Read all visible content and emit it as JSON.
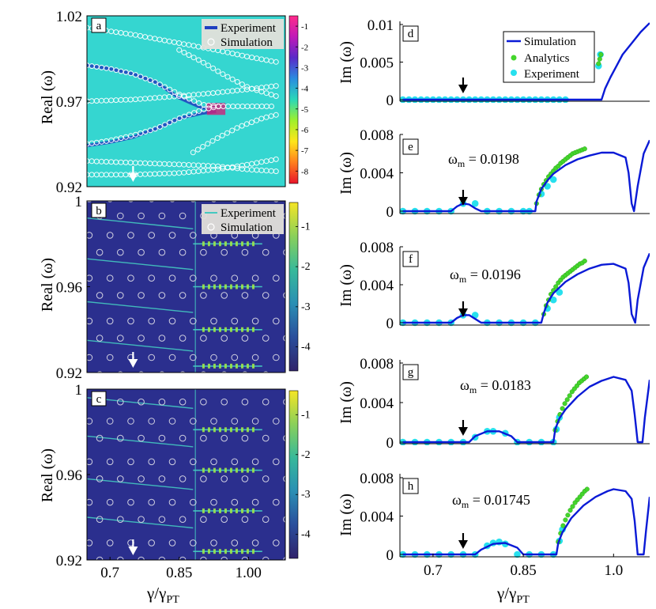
{
  "figure": {
    "left_xlabel": "γ/γ",
    "left_xlabel_sub": "PT",
    "right_xlabel": "γ/γ",
    "right_xlabel_sub": "PT",
    "left_ylabel": "Real (ω)",
    "right_ylabel": "Im (ω)",
    "omega_prefix": "ω",
    "omega_sub": "m",
    "colors": {
      "simulation_line": "#0a1ad6",
      "analytics_dot": "#44d62c",
      "experiment_dot": "#27e0ee",
      "arrow_black": "#000000",
      "arrow_white": "#ffffff",
      "panel_a_bg": "#35d6d0",
      "panel_bc_bg": "#2b2f8e",
      "trace_a": "#1f3fc0",
      "trace_bc": "#44c9c0"
    }
  },
  "chart_data": [
    {
      "id": "a",
      "type": "heatmap",
      "panel_label": "a",
      "xlim": [
        0.65,
        1.08
      ],
      "ylim": [
        0.92,
        1.02
      ],
      "yticks": [
        "1.02",
        "0.97",
        "0.92"
      ],
      "legend": {
        "entries": [
          "Experiment",
          "Simulation"
        ],
        "placement": "top-right"
      },
      "colorbar": {
        "ticks": [
          "-1",
          "-2",
          "-3",
          "-4",
          "-5",
          "-6",
          "-7",
          "-8"
        ],
        "range": [
          -8.6,
          -0.5
        ],
        "colors": [
          "#e8152a",
          "#ff7f1e",
          "#ffe619",
          "#9ff02a",
          "#2ad8b8",
          "#2a8de0",
          "#5a2ac8",
          "#c01ab8",
          "#ff2a8a"
        ]
      },
      "experiment_curves": [
        {
          "x": [
            0.65,
            0.7,
            0.75,
            0.8,
            0.85,
            0.9,
            0.93
          ],
          "y": [
            0.991,
            0.989,
            0.986,
            0.981,
            0.972,
            0.966,
            0.966
          ]
        },
        {
          "x": [
            0.65,
            0.7,
            0.75,
            0.8,
            0.85,
            0.9,
            0.93
          ],
          "y": [
            0.944,
            0.946,
            0.949,
            0.954,
            0.96,
            0.963,
            0.964
          ]
        }
      ],
      "simulation_curves": [
        {
          "x": [
            0.65,
            0.7,
            0.75,
            0.8,
            0.85,
            0.9,
            0.935
          ],
          "y": [
            0.991,
            0.989,
            0.986,
            0.981,
            0.974,
            0.968,
            0.967
          ]
        },
        {
          "x": [
            0.65,
            0.7,
            0.75,
            0.8,
            0.85,
            0.9,
            0.935
          ],
          "y": [
            0.945,
            0.947,
            0.95,
            0.954,
            0.96,
            0.965,
            0.967
          ]
        },
        {
          "x": [
            0.935,
            0.96,
            0.99,
            1.02,
            1.05
          ],
          "y": [
            0.967,
            0.967,
            0.967,
            0.967,
            0.967
          ]
        },
        {
          "x": [
            0.65,
            0.75,
            0.85,
            0.93,
            1.0,
            1.06
          ],
          "y": [
            1.013,
            1.009,
            1.004,
            1.0,
            0.996,
            0.993
          ]
        },
        {
          "x": [
            0.65,
            0.75,
            0.85,
            0.93,
            1.0,
            1.06
          ],
          "y": [
            0.97,
            0.971,
            0.973,
            0.975,
            0.977,
            0.979
          ]
        },
        {
          "x": [
            0.65,
            0.75,
            0.85,
            0.93,
            1.0,
            1.06
          ],
          "y": [
            0.935,
            0.934,
            0.933,
            0.932,
            0.93,
            0.929
          ]
        },
        {
          "x": [
            0.65,
            0.75,
            0.85,
            0.93,
            1.0,
            1.06
          ],
          "y": [
            0.927,
            0.927,
            0.928,
            0.93,
            0.933,
            0.936
          ]
        },
        {
          "x": [
            0.88,
            0.93,
            0.98,
            1.03,
            1.06
          ],
          "y": [
            0.94,
            0.948,
            0.955,
            0.96,
            0.962
          ]
        },
        {
          "x": [
            0.85,
            0.9,
            0.95,
            1.0,
            1.06
          ],
          "y": [
            1.0,
            0.993,
            0.985,
            0.978,
            0.973
          ]
        }
      ],
      "arrow": {
        "x": 0.75,
        "color": "white"
      }
    },
    {
      "id": "b",
      "type": "heatmap",
      "panel_label": "b",
      "xlim": [
        0.65,
        1.08
      ],
      "ylim": [
        0.92,
        1.0
      ],
      "yticks": [
        "1",
        "0.96",
        "0.92"
      ],
      "legend": {
        "entries": [
          "Experiment",
          "Simulation"
        ],
        "placement": "top-right"
      },
      "colorbar": {
        "ticks": [
          "-1",
          "-2",
          "-3",
          "-4"
        ],
        "range": [
          -4.6,
          -0.4
        ],
        "colors": [
          "#30236b",
          "#2a4e9c",
          "#2a8fb4",
          "#37b99a",
          "#8ad05a",
          "#f5e525"
        ]
      },
      "simulation_branches_y": [
        0.989,
        0.97,
        0.95,
        0.932
      ],
      "simulation_right_y": [
        0.98,
        0.96,
        0.94,
        0.923
      ],
      "extra_rows_y": [
        0.997,
        0.98,
        0.96,
        0.94,
        0.923
      ],
      "arrow": {
        "x": 0.75,
        "color": "white"
      }
    },
    {
      "id": "c",
      "type": "heatmap",
      "panel_label": "c",
      "xlim": [
        0.65,
        1.08
      ],
      "ylim": [
        0.92,
        1.0
      ],
      "yticks": [
        "1",
        "0.96",
        "0.92"
      ],
      "xticks": [
        "0.7",
        "0.85",
        "1.00"
      ],
      "colorbar": {
        "ticks": [
          "-1",
          "-2",
          "-3",
          "-4"
        ],
        "range": [
          -4.6,
          -0.4
        ],
        "colors": [
          "#30236b",
          "#2a4e9c",
          "#2a8fb4",
          "#37b99a",
          "#8ad05a",
          "#f5e525"
        ]
      },
      "simulation_branches_y": [
        0.993,
        0.975,
        0.955,
        0.937
      ],
      "simulation_right_y": [
        0.981,
        0.962,
        0.943,
        0.924
      ],
      "extra_rows_y": [
        0.998,
        0.981,
        0.962,
        0.943,
        0.924
      ],
      "arrow": {
        "x": 0.75,
        "color": "white"
      }
    },
    {
      "id": "d",
      "type": "line",
      "panel_label": "d",
      "xlim": [
        0.645,
        1.06
      ],
      "ylim": [
        0,
        0.01
      ],
      "yticks": [
        "0.01",
        "0.005",
        "0"
      ],
      "legend": {
        "entries": [
          "Simulation",
          "Analytics",
          "Experiment"
        ],
        "placement": "top-right"
      },
      "simulation": {
        "x": [
          0.65,
          0.98,
          0.986,
          0.995,
          1.005,
          1.015,
          1.03,
          1.045,
          1.06
        ],
        "y": [
          0,
          0,
          0.0015,
          0.003,
          0.0045,
          0.006,
          0.0075,
          0.009,
          0.0102
        ]
      },
      "analytics": {
        "x": [
          0.975,
          0.977,
          0.979
        ],
        "y": [
          0.0048,
          0.0054,
          0.006
        ]
      },
      "experiment": {
        "x": [
          0.65,
          0.66,
          0.67,
          0.68,
          0.69,
          0.7,
          0.71,
          0.72,
          0.73,
          0.74,
          0.75,
          0.76,
          0.77,
          0.78,
          0.79,
          0.8,
          0.81,
          0.82,
          0.83,
          0.84,
          0.85,
          0.86,
          0.87,
          0.88,
          0.89,
          0.9,
          0.91,
          0.92,
          0.975,
          0.978
        ],
        "y": [
          0,
          0,
          0,
          0,
          0,
          0,
          0,
          0,
          0,
          0,
          0,
          0,
          0,
          0,
          0,
          0,
          0,
          0,
          0,
          0,
          0,
          0,
          0,
          0,
          0,
          0,
          0,
          0,
          0.0045,
          0.006
        ]
      },
      "arrow": {
        "x": 0.75,
        "color": "black"
      }
    },
    {
      "id": "e",
      "type": "line",
      "panel_label": "e",
      "omega_m": "0.0198",
      "xlim": [
        0.645,
        1.06
      ],
      "ylim": [
        0,
        0.008
      ],
      "yticks": [
        "0.008",
        "0.004",
        "0"
      ],
      "simulation": {
        "x": [
          0.65,
          0.73,
          0.74,
          0.75,
          0.76,
          0.77,
          0.78,
          0.87,
          0.872,
          0.88,
          0.89,
          0.9,
          0.92,
          0.94,
          0.96,
          0.98,
          1.0,
          1.02,
          1.025,
          1.03,
          1.034,
          1.04,
          1.05,
          1.06
        ],
        "y": [
          0,
          0,
          0.0005,
          0.0008,
          0.0007,
          0.0003,
          0,
          0,
          0.001,
          0.0023,
          0.0032,
          0.0039,
          0.0048,
          0.0054,
          0.0058,
          0.0061,
          0.0061,
          0.0056,
          0.004,
          0.0008,
          0,
          0.0026,
          0.006,
          0.0074
        ]
      },
      "analytics": {
        "x": [
          0.872,
          0.876,
          0.88,
          0.884,
          0.888,
          0.892,
          0.896,
          0.9,
          0.904,
          0.908,
          0.912,
          0.916,
          0.92,
          0.924,
          0.928,
          0.932,
          0.936,
          0.94,
          0.944,
          0.948,
          0.952
        ],
        "y": [
          0.0008,
          0.0017,
          0.0023,
          0.0028,
          0.0032,
          0.0036,
          0.0039,
          0.0042,
          0.0045,
          0.0047,
          0.005,
          0.0052,
          0.0054,
          0.0056,
          0.0058,
          0.006,
          0.0061,
          0.0062,
          0.0063,
          0.0064,
          0.0065
        ]
      },
      "experiment": {
        "x": [
          0.65,
          0.67,
          0.69,
          0.71,
          0.73,
          0.75,
          0.77,
          0.79,
          0.81,
          0.83,
          0.85,
          0.86,
          0.88,
          0.89,
          0.9
        ],
        "y": [
          0,
          0,
          0,
          0,
          0,
          0.0008,
          0.0008,
          0,
          0,
          0,
          0,
          0,
          0.0018,
          0.0026,
          0.0033
        ]
      },
      "arrow": {
        "x": 0.75,
        "color": "black"
      }
    },
    {
      "id": "f",
      "type": "line",
      "panel_label": "f",
      "omega_m": "0.0196",
      "xlim": [
        0.645,
        1.06
      ],
      "ylim": [
        0,
        0.008
      ],
      "yticks": [
        "0.008",
        "0.004",
        "0"
      ],
      "simulation": {
        "x": [
          0.65,
          0.73,
          0.74,
          0.75,
          0.76,
          0.77,
          0.78,
          0.88,
          0.884,
          0.89,
          0.9,
          0.92,
          0.94,
          0.96,
          0.98,
          1.0,
          1.02,
          1.025,
          1.03,
          1.036,
          1.04,
          1.05,
          1.06
        ],
        "y": [
          0,
          0,
          0.0005,
          0.0008,
          0.0008,
          0.0004,
          0,
          0,
          0.001,
          0.0021,
          0.0031,
          0.0043,
          0.0051,
          0.0057,
          0.0061,
          0.0062,
          0.0057,
          0.0042,
          0.0009,
          0,
          0.0024,
          0.0058,
          0.0073
        ]
      },
      "analytics": {
        "x": [
          0.884,
          0.888,
          0.892,
          0.896,
          0.9,
          0.904,
          0.908,
          0.912,
          0.916,
          0.92,
          0.924,
          0.928,
          0.932,
          0.936,
          0.94,
          0.944,
          0.948,
          0.952
        ],
        "y": [
          0.0009,
          0.0018,
          0.0024,
          0.003,
          0.0034,
          0.0038,
          0.0042,
          0.0045,
          0.0048,
          0.005,
          0.0052,
          0.0054,
          0.0056,
          0.0058,
          0.006,
          0.0062,
          0.0063,
          0.0065
        ]
      },
      "experiment": {
        "x": [
          0.65,
          0.67,
          0.69,
          0.71,
          0.73,
          0.75,
          0.77,
          0.79,
          0.81,
          0.83,
          0.85,
          0.87,
          0.89,
          0.9,
          0.91
        ],
        "y": [
          0,
          0,
          0,
          0,
          0,
          0.0008,
          0.0008,
          0,
          0,
          0,
          0,
          0,
          0.0015,
          0.0024,
          0.0032
        ]
      },
      "arrow": {
        "x": 0.75,
        "color": "black"
      }
    },
    {
      "id": "g",
      "type": "line",
      "panel_label": "g",
      "omega_m": "0.0183",
      "xlim": [
        0.645,
        1.06
      ],
      "ylim": [
        0,
        0.008
      ],
      "yticks": [
        "0.008",
        "0.004",
        "0"
      ],
      "simulation": {
        "x": [
          0.65,
          0.76,
          0.77,
          0.79,
          0.81,
          0.83,
          0.84,
          0.9,
          0.903,
          0.91,
          0.92,
          0.94,
          0.96,
          0.98,
          1.0,
          1.02,
          1.03,
          1.035,
          1.04,
          1.048,
          1.052,
          1.06
        ],
        "y": [
          0,
          0,
          0.0006,
          0.0011,
          0.0011,
          0.0006,
          0,
          0,
          0.0013,
          0.0024,
          0.0033,
          0.0046,
          0.0056,
          0.0062,
          0.0066,
          0.0063,
          0.0052,
          0.0028,
          0,
          0,
          0.0025,
          0.0063
        ]
      },
      "analytics": {
        "x": [
          0.903,
          0.907,
          0.911,
          0.915,
          0.919,
          0.923,
          0.927,
          0.931,
          0.935,
          0.939,
          0.943,
          0.947,
          0.951,
          0.955
        ],
        "y": [
          0.0012,
          0.0021,
          0.0028,
          0.0034,
          0.0039,
          0.0043,
          0.0047,
          0.0051,
          0.0054,
          0.0057,
          0.006,
          0.0062,
          0.0064,
          0.0066
        ]
      },
      "experiment": {
        "x": [
          0.65,
          0.67,
          0.69,
          0.71,
          0.73,
          0.75,
          0.77,
          0.79,
          0.8,
          0.82,
          0.84,
          0.86,
          0.88,
          0.9,
          0.905,
          0.91
        ],
        "y": [
          0,
          0,
          0,
          0,
          0,
          0,
          0.0005,
          0.0011,
          0.0011,
          0.0009,
          0,
          0,
          0,
          0,
          0.0013,
          0.0025
        ]
      },
      "arrow": {
        "x": 0.75,
        "color": "black"
      }
    },
    {
      "id": "h",
      "type": "line",
      "panel_label": "h",
      "omega_m": "0.01745",
      "xlim": [
        0.645,
        1.06
      ],
      "ylim": [
        0,
        0.008
      ],
      "yticks": [
        "0.008",
        "0.004",
        "0"
      ],
      "simulation": {
        "x": [
          0.65,
          0.77,
          0.78,
          0.8,
          0.82,
          0.84,
          0.85,
          0.905,
          0.908,
          0.915,
          0.93,
          0.95,
          0.97,
          0.99,
          1.0,
          1.02,
          1.03,
          1.035,
          1.04,
          1.05,
          1.054,
          1.06
        ],
        "y": [
          0,
          0,
          0.0005,
          0.0011,
          0.0012,
          0.0007,
          0,
          0,
          0.0012,
          0.0023,
          0.0038,
          0.0051,
          0.006,
          0.0066,
          0.0068,
          0.0066,
          0.0058,
          0.0035,
          0,
          0,
          0.0025,
          0.006
        ]
      },
      "analytics": {
        "x": [
          0.908,
          0.912,
          0.916,
          0.92,
          0.924,
          0.928,
          0.932,
          0.936,
          0.94,
          0.944,
          0.948,
          0.952,
          0.956
        ],
        "y": [
          0.0013,
          0.0022,
          0.003,
          0.0036,
          0.0041,
          0.0046,
          0.005,
          0.0054,
          0.0057,
          0.006,
          0.0063,
          0.0066,
          0.0068
        ]
      },
      "experiment": {
        "x": [
          0.65,
          0.67,
          0.69,
          0.71,
          0.73,
          0.75,
          0.77,
          0.79,
          0.8,
          0.81,
          0.82,
          0.84,
          0.86,
          0.88,
          0.9,
          0.91,
          0.915
        ],
        "y": [
          0,
          0,
          0,
          0,
          0,
          0,
          0,
          0.0009,
          0.0012,
          0.0013,
          0.0011,
          0,
          0,
          0,
          0,
          0.0014,
          0.0026
        ]
      },
      "arrow": {
        "x": 0.75,
        "color": "black"
      }
    }
  ]
}
